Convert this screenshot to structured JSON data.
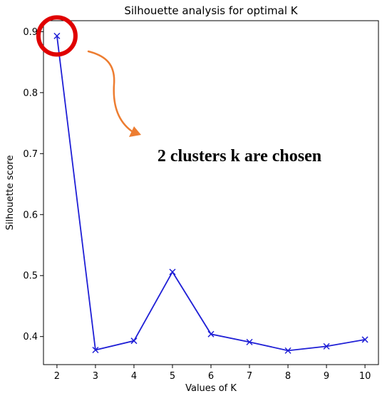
{
  "chart_data": {
    "type": "line",
    "title": "Silhouette analysis for optimal K",
    "xlabel": "Values of K",
    "ylabel": "Silhouette score",
    "x": [
      2,
      3,
      4,
      5,
      6,
      7,
      8,
      9,
      10
    ],
    "series": [
      {
        "values": [
          0.893,
          0.378,
          0.393,
          0.506,
          0.404,
          0.391,
          0.377,
          0.384,
          0.395
        ],
        "color": "#1f1fd6",
        "marker": "x"
      }
    ],
    "xticks": [
      "2",
      "3",
      "4",
      "5",
      "6",
      "7",
      "8",
      "9",
      "10"
    ],
    "yticks": [
      "0.4",
      "0.5",
      "0.6",
      "0.7",
      "0.8",
      "0.9"
    ],
    "xlim": [
      1.65,
      10.35
    ],
    "ylim": [
      0.354,
      0.918
    ],
    "grid": false,
    "annotation": {
      "text": "2 clusters k are chosen",
      "highlight_point": 2,
      "highlight_color": "#e00000",
      "arrow_color": "#ed7d31"
    }
  }
}
